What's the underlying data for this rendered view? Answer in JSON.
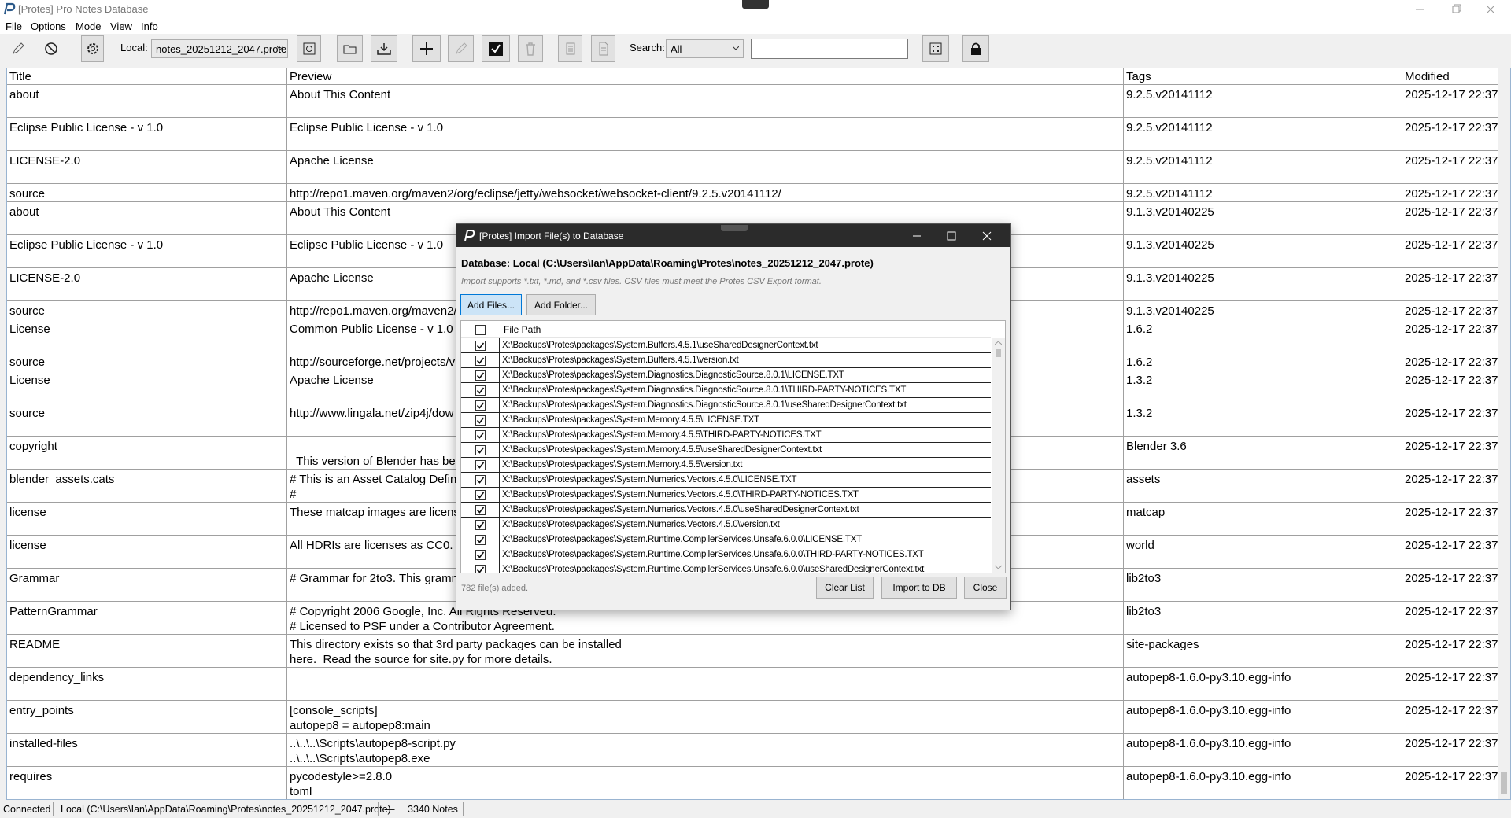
{
  "window": {
    "title": "[Protes] Pro Notes Database"
  },
  "menu": [
    "File",
    "Options",
    "Mode",
    "View",
    "Info"
  ],
  "toolbar": {
    "local_label": "Local:",
    "local_value": "notes_20251212_2047.prote",
    "search_label": "Search:",
    "search_value": "All"
  },
  "table": {
    "columns": [
      "Title",
      "Preview",
      "Tags",
      "Modified"
    ],
    "rows": [
      [
        "about",
        "About This Content",
        "9.2.5.v20141112",
        "2025-12-17 22:37"
      ],
      [
        "Eclipse Public License - v 1.0",
        "Eclipse Public License - v 1.0",
        "9.2.5.v20141112",
        "2025-12-17 22:37"
      ],
      [
        "LICENSE-2.0",
        "Apache License",
        "9.2.5.v20141112",
        "2025-12-17 22:37"
      ],
      [
        "source",
        "http://repo1.maven.org/maven2/org/eclipse/jetty/websocket/websocket-client/9.2.5.v20141112/",
        "9.2.5.v20141112",
        "2025-12-17 22:37"
      ],
      [
        "about",
        "About This Content",
        "9.1.3.v20140225",
        "2025-12-17 22:37"
      ],
      [
        "Eclipse Public License - v 1.0",
        "Eclipse Public License - v 1.0",
        "9.1.3.v20140225",
        "2025-12-17 22:37"
      ],
      [
        "LICENSE-2.0",
        "Apache License",
        "9.1.3.v20140225",
        "2025-12-17 22:37"
      ],
      [
        "source",
        "http://repo1.maven.org/maven2/",
        "9.1.3.v20140225",
        "2025-12-17 22:37"
      ],
      [
        "License",
        "Common Public License - v 1.0",
        "1.6.2",
        "2025-12-17 22:37"
      ],
      [
        "source",
        "http://sourceforge.net/projects/v",
        "1.6.2",
        "2025-12-17 22:37"
      ],
      [
        "License",
        "Apache License",
        "1.3.2",
        "2025-12-17 22:37"
      ],
      [
        "source",
        "http://www.lingala.net/zip4j/dow",
        "1.3.2",
        "2025-12-17 22:37"
      ],
      [
        "copyright",
        "\n  This version of Blender has been",
        "Blender 3.6",
        "2025-12-17 22:37"
      ],
      [
        "blender_assets.cats",
        "# This is an Asset Catalog Definit\n#",
        "assets",
        "2025-12-17 22:37"
      ],
      [
        "license",
        "These matcap images are license",
        "matcap",
        "2025-12-17 22:37"
      ],
      [
        "license",
        "All HDRIs are licenses as CC0.",
        "world",
        "2025-12-17 22:37"
      ],
      [
        "Grammar",
        "# Grammar for 2to3. This gramm",
        "lib2to3",
        "2025-12-17 22:37"
      ],
      [
        "PatternGrammar",
        "# Copyright 2006 Google, Inc. All Rights Reserved.\n# Licensed to PSF under a Contributor Agreement.",
        "lib2to3",
        "2025-12-17 22:37"
      ],
      [
        "README",
        "This directory exists so that 3rd party packages can be installed\nhere.  Read the source for site.py for more details.",
        "site-packages",
        "2025-12-17 22:37"
      ],
      [
        "dependency_links",
        null,
        "autopep8-1.6.0-py3.10.egg-info",
        "2025-12-17 22:37"
      ],
      [
        "entry_points",
        "[console_scripts]\nautopep8 = autopep8:main",
        "autopep8-1.6.0-py3.10.egg-info",
        "2025-12-17 22:37"
      ],
      [
        "installed-files",
        "..\\..\\..\\Scripts\\autopep8-script.py\n..\\..\\..\\Scripts\\autopep8.exe",
        "autopep8-1.6.0-py3.10.egg-info",
        "2025-12-17 22:37"
      ],
      [
        "requires",
        "pycodestyle>=2.8.0\ntoml",
        "autopep8-1.6.0-py3.10.egg-info",
        "2025-12-17 22:37"
      ]
    ]
  },
  "dialog": {
    "title": "[Protes] Import File(s) to Database",
    "database": "Database: Local (C:\\Users\\Ian\\AppData\\Roaming\\Protes\\notes_20251212_2047.prote)",
    "hint": "Import supports *.txt, *.md, and *.csv files. CSV files must meet the Protes CSV Export format.",
    "buttons": [
      "Add Files...",
      "Add Folder..."
    ],
    "list_header": "File Path",
    "files": [
      "X:\\Backups\\Protes\\packages\\System.Buffers.4.5.1\\useSharedDesignerContext.txt",
      "X:\\Backups\\Protes\\packages\\System.Buffers.4.5.1\\version.txt",
      "X:\\Backups\\Protes\\packages\\System.Diagnostics.DiagnosticSource.8.0.1\\LICENSE.TXT",
      "X:\\Backups\\Protes\\packages\\System.Diagnostics.DiagnosticSource.8.0.1\\THIRD-PARTY-NOTICES.TXT",
      "X:\\Backups\\Protes\\packages\\System.Diagnostics.DiagnosticSource.8.0.1\\useSharedDesignerContext.txt",
      "X:\\Backups\\Protes\\packages\\System.Memory.4.5.5\\LICENSE.TXT",
      "X:\\Backups\\Protes\\packages\\System.Memory.4.5.5\\THIRD-PARTY-NOTICES.TXT",
      "X:\\Backups\\Protes\\packages\\System.Memory.4.5.5\\useSharedDesignerContext.txt",
      "X:\\Backups\\Protes\\packages\\System.Memory.4.5.5\\version.txt",
      "X:\\Backups\\Protes\\packages\\System.Numerics.Vectors.4.5.0\\LICENSE.TXT",
      "X:\\Backups\\Protes\\packages\\System.Numerics.Vectors.4.5.0\\THIRD-PARTY-NOTICES.TXT",
      "X:\\Backups\\Protes\\packages\\System.Numerics.Vectors.4.5.0\\useSharedDesignerContext.txt",
      "X:\\Backups\\Protes\\packages\\System.Numerics.Vectors.4.5.0\\version.txt",
      "X:\\Backups\\Protes\\packages\\System.Runtime.CompilerServices.Unsafe.6.0.0\\LICENSE.TXT",
      "X:\\Backups\\Protes\\packages\\System.Runtime.CompilerServices.Unsafe.6.0.0\\THIRD-PARTY-NOTICES.TXT",
      "X:\\Backups\\Protes\\packages\\System.Runtime.CompilerServices.Unsafe.6.0.0\\useSharedDesignerContext.txt"
    ],
    "status": "782 file(s) added.",
    "actions": [
      "Clear List",
      "Import to DB",
      "Close"
    ]
  },
  "status_bar": [
    "Connected",
    "Local (C:\\Users\\Ian\\AppData\\Roaming\\Protes\\notes_20251212_2047.prote)",
    "—",
    "3340 Notes"
  ]
}
